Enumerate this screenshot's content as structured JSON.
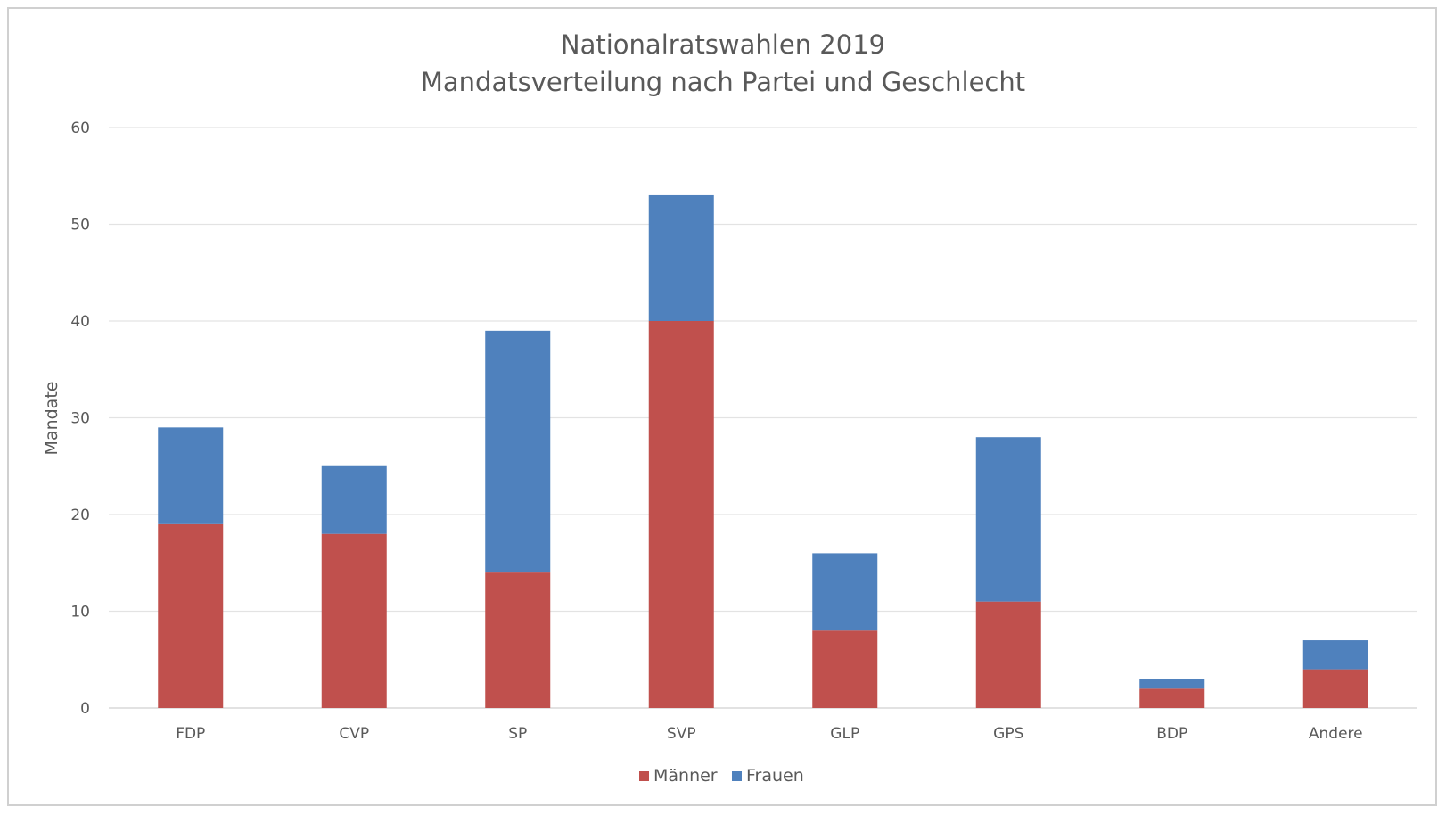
{
  "chart_data": {
    "type": "bar",
    "stacked": true,
    "title": "Nationalratswahlen 2019",
    "subtitle": "Mandatsverteilung nach Partei und Geschlecht",
    "xlabel": "",
    "ylabel": "Mandate",
    "ylim": [
      0,
      60
    ],
    "yticks": [
      0,
      10,
      20,
      30,
      40,
      50,
      60
    ],
    "grid": true,
    "legend_position": "bottom",
    "categories": [
      "FDP",
      "CVP",
      "SP",
      "SVP",
      "GLP",
      "GPS",
      "BDP",
      "Andere"
    ],
    "series": [
      {
        "name": "Männer",
        "color": "#c0504d",
        "values": [
          19,
          18,
          14,
          40,
          8,
          11,
          2,
          4
        ]
      },
      {
        "name": "Frauen",
        "color": "#4f81bd",
        "values": [
          10,
          7,
          25,
          13,
          8,
          17,
          1,
          3
        ]
      }
    ]
  }
}
